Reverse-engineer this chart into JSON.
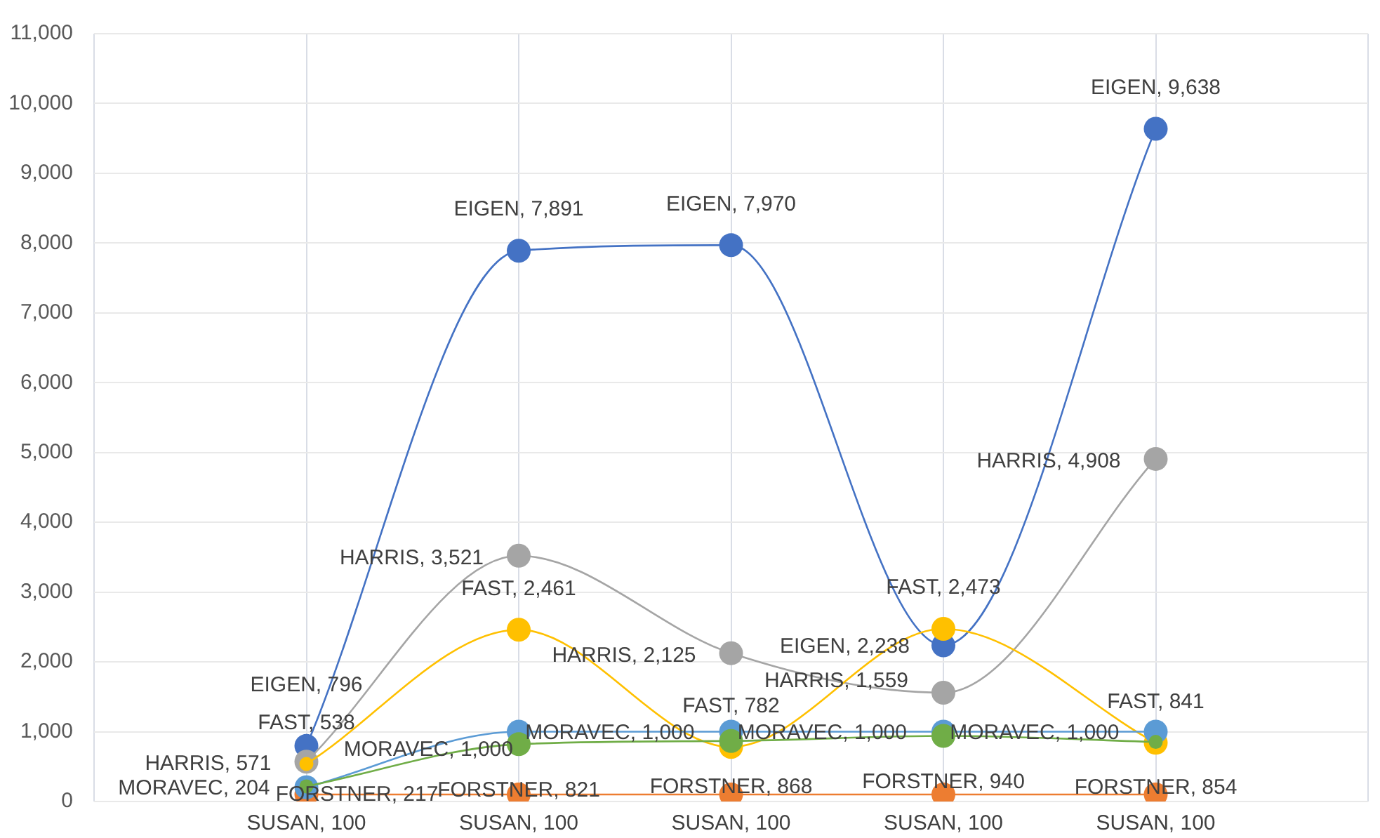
{
  "chart_data": {
    "type": "line",
    "categories": [
      null,
      null,
      null,
      null,
      null
    ],
    "series": [
      {
        "color": "#4472c4",
        "values": [
          796,
          7891,
          7970,
          2238,
          9638
        ],
        "value_labels": [
          "EIGEN, 796",
          "EIGEN, 7,891",
          "EIGEN, 7,970",
          "EIGEN, 2,238",
          "EIGEN, 9,638"
        ]
      },
      {
        "color": "#ed7d31",
        "values": [
          100,
          100,
          100,
          100,
          100
        ],
        "value_labels": [
          "SUSAN, 100",
          "SUSAN, 100",
          "SUSAN, 100",
          "SUSAN, 100",
          "SUSAN, 100"
        ]
      },
      {
        "color": "#a5a5a5",
        "values": [
          571,
          3521,
          2125,
          1559,
          4908
        ],
        "value_labels": [
          "HARRIS, 571",
          "HARRIS, 3,521",
          "HARRIS, 2,125",
          "HARRIS, 1,559",
          "HARRIS, 4,908"
        ]
      },
      {
        "color": "#ffc000",
        "values": [
          538,
          2461,
          782,
          2473,
          841
        ],
        "value_labels": [
          "FAST, 538",
          "FAST, 2,461",
          "FAST, 782",
          "FAST, 2,473",
          "FAST, 841"
        ]
      },
      {
        "color": "#5b9bd5",
        "values": [
          204,
          1000,
          1000,
          1000,
          1000
        ],
        "value_labels": [
          "MORAVEC, 204",
          "MORAVEC, 1,000",
          "MORAVEC, 1,000",
          "MORAVEC, 1,000",
          "MORAVEC, 1,000"
        ]
      },
      {
        "color": "#70ad47",
        "values": [
          217,
          821,
          868,
          940,
          854
        ],
        "value_labels": [
          "FORSTNER, 217",
          "FORSTNER, 821",
          "FORSTNER, 868",
          "FORSTNER, 940",
          "FORSTNER, 854"
        ]
      }
    ],
    "ylim": [
      0,
      11000
    ],
    "yticks": [
      0,
      {
        "value": 1000,
        "label": "1,000"
      },
      {
        "value": 2000,
        "label": "2,000"
      },
      {
        "value": 3000,
        "label": "3,000"
      },
      {
        "value": 4000,
        "label": "4,000"
      },
      {
        "value": 5000,
        "label": "5,000"
      },
      {
        "value": 6000,
        "label": "6,000"
      },
      {
        "value": 7000,
        "label": "7,000"
      },
      {
        "value": 8000,
        "label": "8,000"
      },
      {
        "value": 9000,
        "label": "9,000"
      },
      {
        "value": 10000,
        "label": "10,000"
      },
      {
        "value": 11000,
        "label": "11,000"
      }
    ],
    "grid": true,
    "legend": false,
    "tick_labels": "y",
    "marker": "circle",
    "line_style": "solid"
  }
}
